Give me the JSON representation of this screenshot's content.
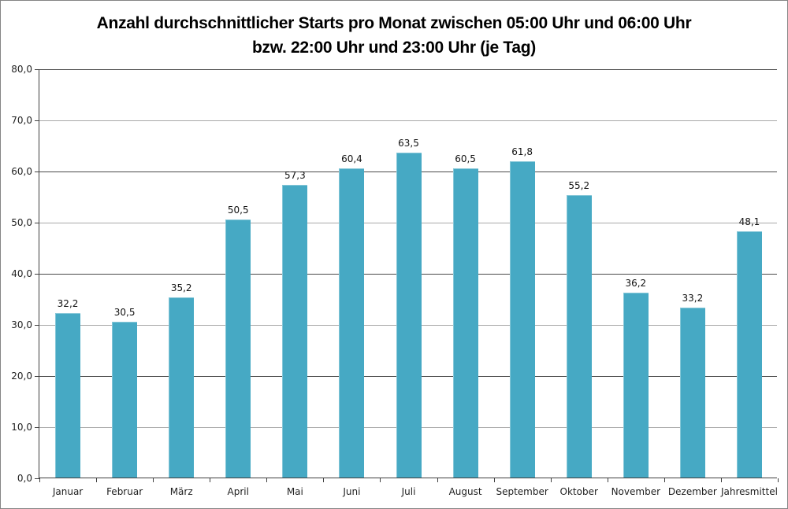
{
  "window": {
    "background_color": "#ffffff",
    "border_color": "#848484"
  },
  "chart_data": {
    "type": "bar",
    "title": "Anzahl durchschnittlicher Starts pro Monat zwischen 05:00 Uhr und 06:00 Uhr bzw. 22:00 Uhr und 23:00 Uhr (je Tag)",
    "title_lines": [
      "Anzahl durchschnittlicher Starts pro Monat zwischen 05:00 Uhr und 06:00 Uhr",
      "bzw. 22:00 Uhr und 23:00 Uhr (je Tag)"
    ],
    "categories": [
      "Januar",
      "Februar",
      "März",
      "April",
      "Mai",
      "Juni",
      "Juli",
      "August",
      "September",
      "Oktober",
      "November",
      "Dezember",
      "Jahresmittel"
    ],
    "values": [
      32.2,
      30.5,
      35.2,
      50.5,
      57.3,
      60.4,
      63.5,
      60.5,
      61.8,
      55.2,
      36.2,
      33.2,
      48.1
    ],
    "value_labels": [
      "32,2",
      "30,5",
      "35,2",
      "50,5",
      "57,3",
      "60,4",
      "63,5",
      "60,5",
      "61,8",
      "55,2",
      "36,2",
      "33,2",
      "48,1"
    ],
    "xlabel": "",
    "ylabel": "",
    "ylim": [
      0,
      80
    ],
    "ytick_step": 10,
    "ytick_labels_top_to_bottom": [
      "80,0",
      "70,0",
      "60,0",
      "50,0",
      "40,0",
      "30,0",
      "20,0",
      "10,0",
      "0,0"
    ],
    "grid": true,
    "legend": "none",
    "colors": {
      "bar_fill": "#46a9c4",
      "gridline_major": "#4a4a4a",
      "gridline_minor": "#a8a8a8",
      "axis_line": "#3f3f3f",
      "tick_label": "#1f1f1f",
      "title_text": "#000000",
      "value_label": "#111111"
    }
  }
}
